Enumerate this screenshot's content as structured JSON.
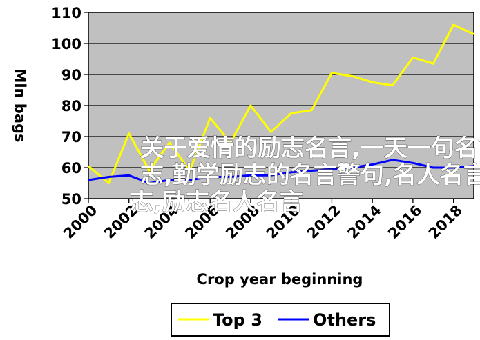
{
  "chart_data": {
    "type": "line",
    "title": "",
    "xlabel": "Crop year beginning",
    "ylabel": "Mln bags",
    "xlim": [
      2000,
      2019
    ],
    "ylim": [
      50,
      110
    ],
    "x_ticks": [
      2000,
      2002,
      2004,
      2006,
      2008,
      2010,
      2012,
      2014,
      2016,
      2018
    ],
    "y_ticks": [
      50,
      60,
      70,
      80,
      90,
      100,
      110
    ],
    "grid": "horizontal",
    "legend_position": "bottom",
    "series": [
      {
        "name": "Top 3",
        "color": "#ffff00",
        "x": [
          2000,
          2001,
          2002,
          2003,
          2004,
          2005,
          2006,
          2007,
          2008,
          2009,
          2010,
          2011,
          2012,
          2013,
          2014,
          2015,
          2016,
          2017,
          2018,
          2019
        ],
        "y": [
          60.5,
          55,
          71,
          59,
          68,
          59,
          76,
          68,
          80,
          71.5,
          77.5,
          78.5,
          90.5,
          89.5,
          87.5,
          86.5,
          95.5,
          93.5,
          106,
          103
        ]
      },
      {
        "name": "Others",
        "color": "#0000ff",
        "x": [
          2000,
          2001,
          2002,
          2003,
          2004,
          2005,
          2006,
          2007,
          2008,
          2009,
          2010,
          2011,
          2012,
          2013,
          2014,
          2015,
          2016,
          2017,
          2018,
          2019
        ],
        "y": [
          56,
          57,
          57.5,
          55,
          56,
          56,
          57,
          57,
          57.5,
          57.5,
          58.5,
          59,
          59.5,
          60,
          61,
          62.5,
          61.5,
          60,
          60,
          60.5
        ]
      }
    ]
  },
  "overlay": {
    "lines": [
      "关于爱情的励志名言,一天一句名言励",
      "志,勤学励志的名言警句,名人名言励",
      "志,励志名人名言"
    ]
  }
}
